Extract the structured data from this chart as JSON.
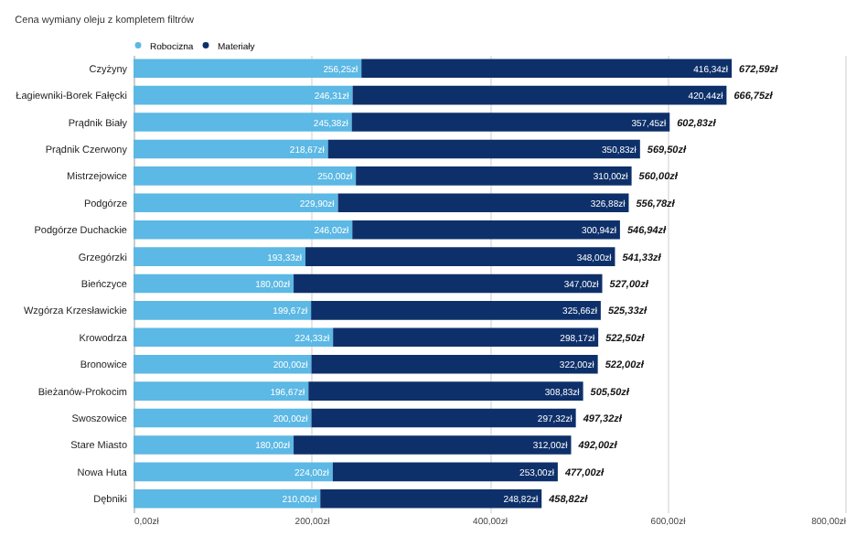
{
  "chart_data": {
    "type": "bar",
    "orientation": "horizontal",
    "stacked": true,
    "title": "Cena wymiany oleju z kompletem filtrów",
    "categories": [
      "Czyżyny",
      "Łagiewniki-Borek Fałęcki",
      "Prądnik Biały",
      "Prądnik Czerwony",
      "Mistrzejowice",
      "Podgórze",
      "Podgórze Duchackie",
      "Grzegórzki",
      "Bieńczyce",
      "Wzgórza Krzesławickie",
      "Krowodrza",
      "Bronowice",
      "Bieżanów-Prokocim",
      "Swoszowice",
      "Stare Miasto",
      "Nowa Huta",
      "Dębniki"
    ],
    "series": [
      {
        "name": "Robocizna",
        "color": "#5cb8e4",
        "values": [
          256.25,
          246.31,
          245.38,
          218.67,
          250.0,
          229.9,
          246.0,
          193.33,
          180.0,
          199.67,
          224.33,
          200.0,
          196.67,
          200.0,
          180.0,
          224.0,
          210.0
        ],
        "value_labels": [
          "256,25zł",
          "246,31zł",
          "245,38zł",
          "218,67zł",
          "250,00zł",
          "229,90zł",
          "246,00zł",
          "193,33zł",
          "180,00zł",
          "199,67zł",
          "224,33zł",
          "200,00zł",
          "196,67zł",
          "200,00zł",
          "180,00zł",
          "224,00zł",
          "210,00zł"
        ]
      },
      {
        "name": "Materiały",
        "color": "#0e306a",
        "values": [
          416.34,
          420.44,
          357.45,
          350.83,
          310.0,
          326.88,
          300.94,
          348.0,
          347.0,
          325.66,
          298.17,
          322.0,
          308.83,
          297.32,
          312.0,
          253.0,
          248.82
        ],
        "value_labels": [
          "416,34zł",
          "420,44zł",
          "357,45zł",
          "350,83zł",
          "310,00zł",
          "326,88zł",
          "300,94zł",
          "348,00zł",
          "347,00zł",
          "325,66zł",
          "298,17zł",
          "322,00zł",
          "308,83zł",
          "297,32zł",
          "312,00zł",
          "253,00zł",
          "248,82zł"
        ]
      }
    ],
    "totals": [
      "672,59zł",
      "666,75zł",
      "602,83zł",
      "569,50zł",
      "560,00zł",
      "556,78zł",
      "546,94zł",
      "541,33zł",
      "527,00zł",
      "525,33zł",
      "522,50zł",
      "522,00zł",
      "505,50zł",
      "497,32zł",
      "492,00zł",
      "477,00zł",
      "458,82zł"
    ],
    "xlim": [
      0,
      800
    ],
    "xticks": [
      {
        "value": 0,
        "label": "0,00zł"
      },
      {
        "value": 200,
        "label": "200,00zł"
      },
      {
        "value": 400,
        "label": "400,00zł"
      },
      {
        "value": 600,
        "label": "600,00zł"
      },
      {
        "value": 800,
        "label": "800,00zł"
      }
    ],
    "grid": "x",
    "legend": "top"
  }
}
